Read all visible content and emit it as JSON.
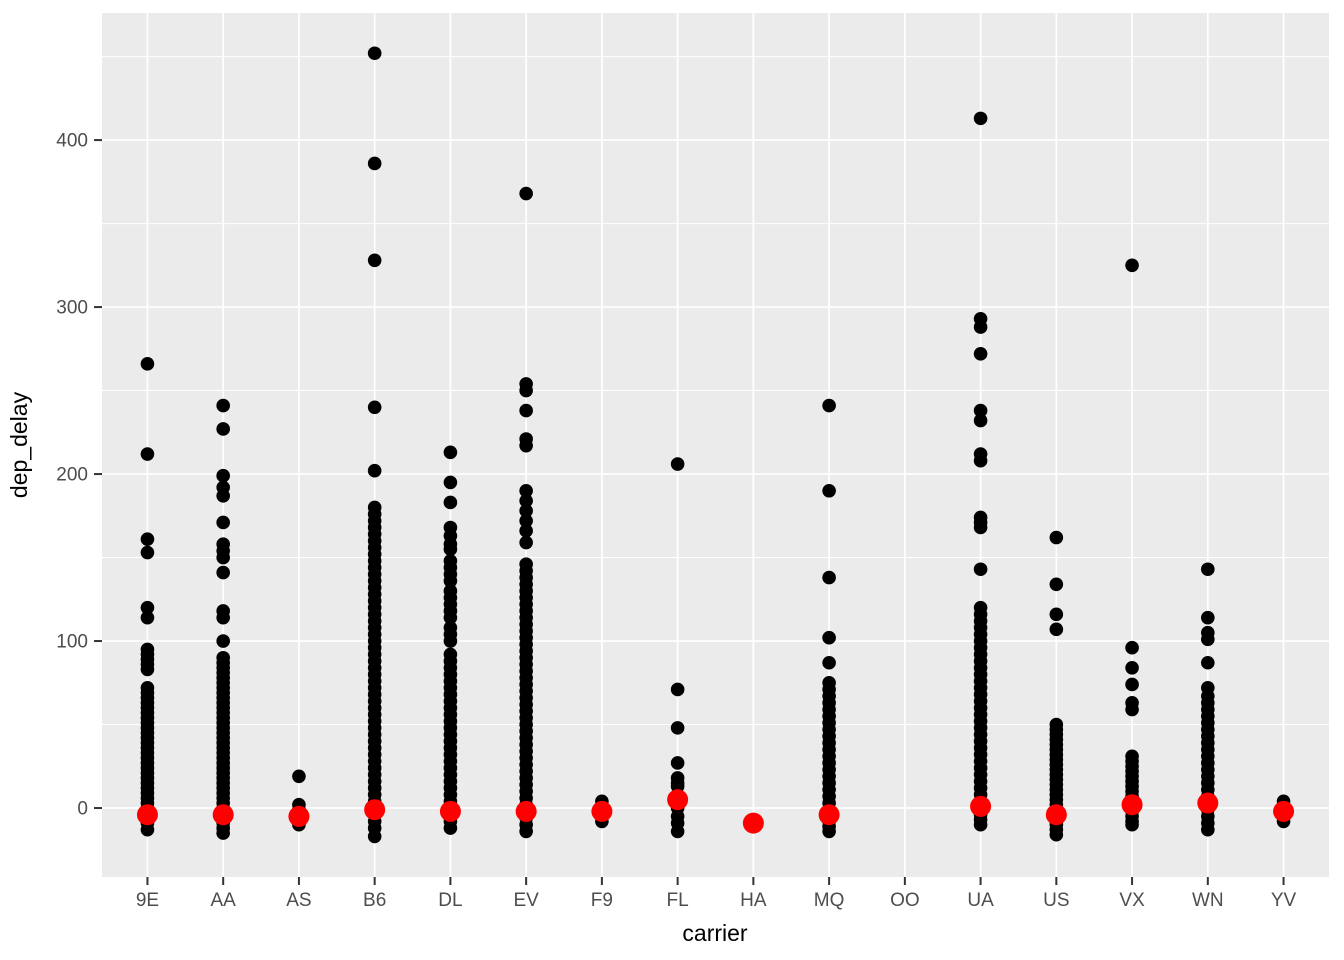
{
  "chart_data": {
    "type": "scatter",
    "title": "",
    "xlabel": "carrier",
    "ylabel": "dep_delay",
    "legend": "none",
    "grid": true,
    "panel_bg_color": "#EBEBEB",
    "grid_color": "#FFFFFF",
    "point_color": "#000000",
    "mean_point_color": "#FF0000",
    "tick_color": "#333333",
    "tick_label_color": "#4D4D4D",
    "x_categories": [
      "9E",
      "AA",
      "AS",
      "B6",
      "DL",
      "EV",
      "F9",
      "FL",
      "HA",
      "MQ",
      "OO",
      "UA",
      "US",
      "VX",
      "WN",
      "YV"
    ],
    "y_ticks": [
      0,
      100,
      200,
      300,
      400
    ],
    "y_minor_ticks": [
      50,
      150,
      250,
      350,
      450
    ],
    "ylim": [
      -41.3,
      476.1
    ],
    "series": [
      {
        "carrier": "9E",
        "mean": -4,
        "points": [
          266,
          212,
          161,
          153,
          120,
          114,
          95,
          92,
          89,
          86,
          83,
          72,
          69,
          66,
          63,
          60,
          57,
          54,
          51,
          48,
          45,
          42,
          39,
          36,
          33,
          30,
          27,
          24,
          21,
          18,
          15,
          12,
          9,
          6,
          3,
          0,
          -3,
          -6,
          -9,
          -13
        ]
      },
      {
        "carrier": "AA",
        "mean": -4,
        "points": [
          241,
          227,
          199,
          192,
          187,
          171,
          158,
          154,
          150,
          141,
          118,
          114,
          100,
          90,
          87,
          84,
          81,
          78,
          75,
          72,
          69,
          66,
          63,
          60,
          57,
          54,
          51,
          48,
          45,
          42,
          39,
          36,
          33,
          30,
          27,
          24,
          21,
          18,
          15,
          12,
          9,
          6,
          3,
          0,
          -3,
          -6,
          -9,
          -12,
          -15
        ]
      },
      {
        "carrier": "AS",
        "mean": -5,
        "points": [
          19,
          2,
          -1,
          -4,
          -7,
          -10
        ]
      },
      {
        "carrier": "B6",
        "mean": -1,
        "points": [
          452,
          386,
          328,
          240,
          202,
          180,
          176,
          172,
          168,
          164,
          160,
          156,
          152,
          148,
          144,
          140,
          136,
          132,
          128,
          124,
          120,
          116,
          112,
          108,
          104,
          100,
          96,
          92,
          88,
          84,
          80,
          76,
          72,
          68,
          64,
          60,
          56,
          52,
          48,
          44,
          40,
          36,
          32,
          28,
          24,
          20,
          16,
          12,
          8,
          4,
          0,
          -4,
          -8,
          -12,
          -17
        ]
      },
      {
        "carrier": "DL",
        "mean": -2,
        "points": [
          213,
          195,
          183,
          168,
          163,
          158,
          155,
          148,
          144,
          140,
          136,
          130,
          126,
          122,
          118,
          114,
          108,
          104,
          100,
          92,
          88,
          84,
          80,
          76,
          72,
          68,
          64,
          60,
          56,
          52,
          48,
          44,
          40,
          36,
          32,
          28,
          24,
          20,
          16,
          12,
          8,
          4,
          0,
          -4,
          -8,
          -12
        ]
      },
      {
        "carrier": "EV",
        "mean": -2,
        "points": [
          368,
          254,
          250,
          238,
          221,
          217,
          190,
          184,
          178,
          172,
          166,
          159,
          146,
          142,
          138,
          134,
          130,
          126,
          122,
          118,
          114,
          110,
          106,
          102,
          98,
          94,
          90,
          86,
          82,
          78,
          74,
          70,
          66,
          62,
          58,
          54,
          50,
          46,
          42,
          38,
          34,
          30,
          26,
          22,
          18,
          14,
          10,
          6,
          2,
          -2,
          -6,
          -10,
          -14
        ]
      },
      {
        "carrier": "F9",
        "mean": -2,
        "points": [
          4,
          1,
          -2,
          -5,
          -8
        ]
      },
      {
        "carrier": "FL",
        "mean": 5,
        "points": [
          206,
          71,
          48,
          27,
          18,
          15,
          13,
          8,
          4,
          0,
          -5,
          -9,
          -14
        ]
      },
      {
        "carrier": "HA",
        "mean": -9,
        "points": []
      },
      {
        "carrier": "MQ",
        "mean": -4,
        "points": [
          241,
          190,
          138,
          102,
          87,
          75,
          71,
          67,
          63,
          59,
          55,
          51,
          47,
          43,
          39,
          35,
          31,
          27,
          23,
          19,
          15,
          11,
          7,
          3,
          -1,
          -5,
          -8,
          -11,
          -14
        ]
      },
      {
        "carrier": "OO",
        "mean": null,
        "points": []
      },
      {
        "carrier": "UA",
        "mean": 1,
        "points": [
          413,
          293,
          288,
          272,
          238,
          232,
          212,
          208,
          174,
          171,
          168,
          143,
          120,
          116,
          112,
          108,
          104,
          100,
          96,
          92,
          88,
          84,
          80,
          76,
          72,
          68,
          64,
          60,
          56,
          52,
          48,
          44,
          40,
          36,
          32,
          28,
          24,
          20,
          16,
          12,
          8,
          4,
          0,
          -4,
          -7,
          -10
        ]
      },
      {
        "carrier": "US",
        "mean": -4,
        "points": [
          162,
          134,
          116,
          107,
          50,
          47,
          44,
          41,
          38,
          35,
          32,
          29,
          26,
          23,
          20,
          17,
          14,
          11,
          8,
          5,
          2,
          -1,
          -4,
          -7,
          -10,
          -13,
          -16
        ]
      },
      {
        "carrier": "VX",
        "mean": 2,
        "points": [
          325,
          96,
          84,
          74,
          63,
          59,
          31,
          28,
          25,
          22,
          19,
          16,
          13,
          10,
          7,
          4,
          1,
          -2,
          -5,
          -8,
          -10
        ]
      },
      {
        "carrier": "WN",
        "mean": 3,
        "points": [
          143,
          114,
          105,
          101,
          87,
          72,
          67,
          63,
          59,
          55,
          51,
          47,
          43,
          39,
          35,
          31,
          27,
          23,
          19,
          15,
          11,
          7,
          3,
          -1,
          -5,
          -9,
          -13
        ]
      },
      {
        "carrier": "YV",
        "mean": -2,
        "points": [
          4,
          0,
          -4,
          -8
        ]
      }
    ]
  }
}
